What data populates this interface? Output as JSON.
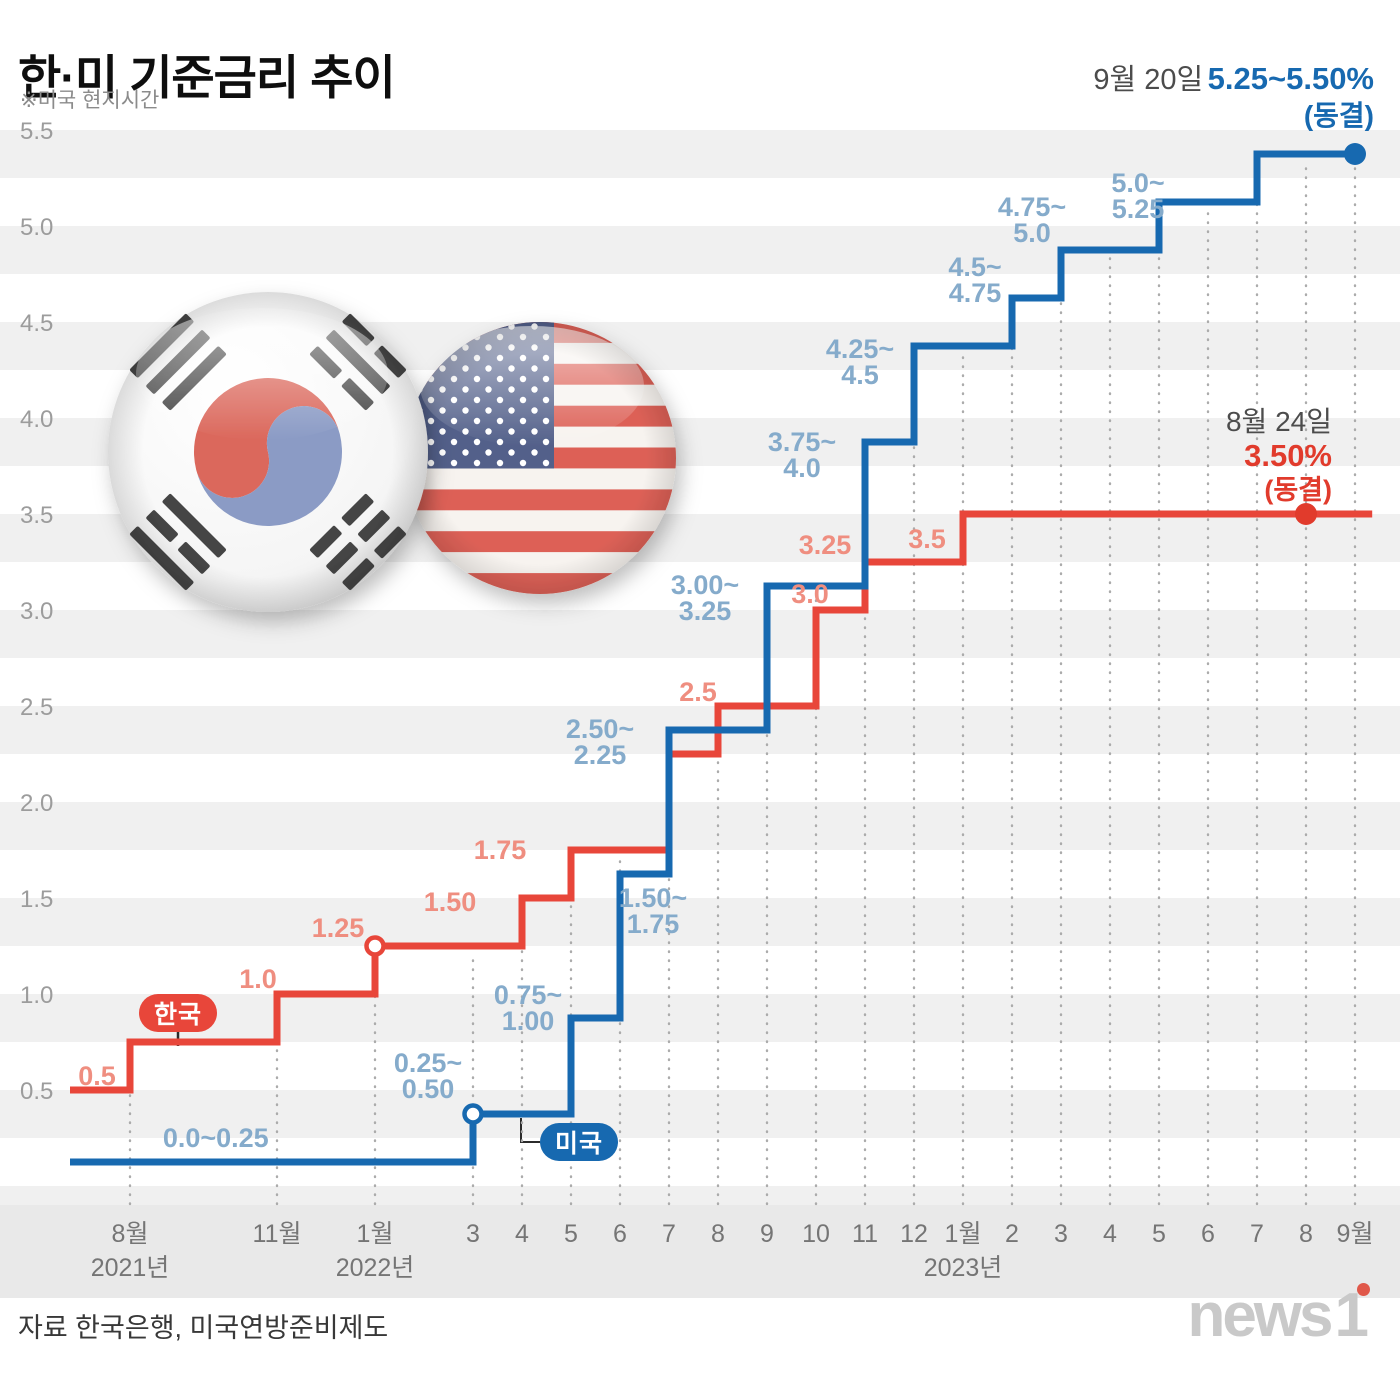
{
  "page": {
    "title": "한·미 기준금리 추이",
    "subtitle": "※미국 현지시간",
    "source": "자료 한국은행, 미국연방준비제도",
    "logo": {
      "news": "news",
      "one": "1"
    }
  },
  "annotations": {
    "us_latest": {
      "date": "9월 20일",
      "value": "5.25~5.50%",
      "status": "(동결)"
    },
    "kr_latest": {
      "date": "8월 24일",
      "value": "3.50%",
      "status": "(동결)"
    }
  },
  "legend": {
    "korea": "한국",
    "us": "미국"
  },
  "colors": {
    "korea_line": "#e8463a",
    "us_line": "#1769b0",
    "korea_label": "#ef8e80",
    "us_label": "#85abcb"
  },
  "chart_data": {
    "type": "step-line",
    "title": "한·미 기준금리 추이",
    "t_unit": "months (t=1 → 2021년 8월)",
    "y_axis": {
      "unit": "%",
      "range": [
        0,
        5.5
      ],
      "ticks": [
        {
          "v": 5.5,
          "label": "5.5"
        },
        {
          "v": 5.0,
          "label": "5.0"
        },
        {
          "v": 4.5,
          "label": "4.5"
        },
        {
          "v": 4.0,
          "label": "4.0"
        },
        {
          "v": 3.5,
          "label": "3.5"
        },
        {
          "v": 3.0,
          "label": "3.0"
        },
        {
          "v": 2.5,
          "label": "2.5"
        },
        {
          "v": 2.0,
          "label": "2.0"
        },
        {
          "v": 1.5,
          "label": "1.5"
        },
        {
          "v": 1.0,
          "label": "1.0"
        },
        {
          "v": 0.5,
          "label": "0.5"
        }
      ]
    },
    "x_axis": {
      "ticks": [
        {
          "t": 1,
          "label": "8월",
          "year": "2021년"
        },
        {
          "t": 4,
          "label": "11월"
        },
        {
          "t": 6,
          "label": "1월",
          "year": "2022년"
        },
        {
          "t": 8,
          "label": "3"
        },
        {
          "t": 9,
          "label": "4"
        },
        {
          "t": 10,
          "label": "5"
        },
        {
          "t": 11,
          "label": "6"
        },
        {
          "t": 12,
          "label": "7"
        },
        {
          "t": 13,
          "label": "8"
        },
        {
          "t": 14,
          "label": "9"
        },
        {
          "t": 15,
          "label": "10"
        },
        {
          "t": 16,
          "label": "11"
        },
        {
          "t": 17,
          "label": "12"
        },
        {
          "t": 18,
          "label": "1월",
          "year": "2023년"
        },
        {
          "t": 19,
          "label": "2"
        },
        {
          "t": 20,
          "label": "3"
        },
        {
          "t": 21,
          "label": "4"
        },
        {
          "t": 22,
          "label": "5"
        },
        {
          "t": 23,
          "label": "6"
        },
        {
          "t": 24,
          "label": "7"
        },
        {
          "t": 25,
          "label": "8"
        },
        {
          "t": 26,
          "label": "9월"
        }
      ]
    },
    "series": [
      {
        "id": "korea",
        "name": "한국",
        "color": "#e8463a",
        "label_color": "#ef8e80",
        "dot_color": "#e13b2c",
        "start_value": 0.5,
        "end_t": 26.35,
        "steps": [
          {
            "t": 1,
            "v": 0.75
          },
          {
            "t": 4,
            "v": 1.0
          },
          {
            "t": 6,
            "v": 1.25
          },
          {
            "t": 9,
            "v": 1.5
          },
          {
            "t": 10,
            "v": 1.75
          },
          {
            "t": 12,
            "v": 2.25
          },
          {
            "t": 13,
            "v": 2.5
          },
          {
            "t": 15,
            "v": 3.0
          },
          {
            "t": 16,
            "v": 3.25
          },
          {
            "t": 18,
            "v": 3.5
          }
        ]
      },
      {
        "id": "us",
        "name": "미국",
        "color": "#1769b0",
        "label_color": "#85abcb",
        "dot_color": "#1769b0",
        "start_value": 0.125,
        "start_range": "0.0~0.25",
        "end_t": 26,
        "steps": [
          {
            "t": 8,
            "v": 0.375,
            "range": "0.25~0.50"
          },
          {
            "t": 10,
            "v": 0.875,
            "range": "0.75~1.00"
          },
          {
            "t": 11,
            "v": 1.625,
            "range": "1.50~1.75"
          },
          {
            "t": 12,
            "v": 2.375,
            "range": "2.25~2.50"
          },
          {
            "t": 14,
            "v": 3.125,
            "range": "3.00~3.25"
          },
          {
            "t": 16,
            "v": 3.875,
            "range": "3.75~4.00"
          },
          {
            "t": 17,
            "v": 4.375,
            "range": "4.25~4.50"
          },
          {
            "t": 19,
            "v": 4.625,
            "range": "4.50~4.75"
          },
          {
            "t": 20,
            "v": 4.875,
            "range": "4.75~5.00"
          },
          {
            "t": 22,
            "v": 5.125,
            "range": "5.00~5.25"
          },
          {
            "t": 24,
            "v": 5.375,
            "range": "5.25~5.50"
          }
        ]
      }
    ],
    "step_labels": [
      {
        "series": "us",
        "lines": [
          "0.0~0.25"
        ],
        "t": 2.75,
        "v": 0.125,
        "dx": 0,
        "dy": -24
      },
      {
        "series": "us",
        "lines": [
          "0.25~",
          "0.50"
        ],
        "t": 8,
        "v": 0.375,
        "dx": -45,
        "dy": -38
      },
      {
        "series": "us",
        "lines": [
          "0.75~",
          "1.00"
        ],
        "t": 10,
        "v": 0.875,
        "dx": -43,
        "dy": -10
      },
      {
        "series": "us",
        "lines": [
          "1.50~",
          "1.75"
        ],
        "t": 11,
        "v": 1.625,
        "dx": 33,
        "dy": 37
      },
      {
        "series": "us",
        "lines": [
          "2.50~",
          "2.25"
        ],
        "t": 12,
        "v": 2.375,
        "dx": -69,
        "dy": 12
      },
      {
        "series": "us",
        "lines": [
          "3.00~",
          "3.25"
        ],
        "t": 14,
        "v": 3.125,
        "dx": -62,
        "dy": 12
      },
      {
        "series": "us",
        "lines": [
          "3.75~",
          "4.0"
        ],
        "t": 16,
        "v": 3.875,
        "dx": -63,
        "dy": 13
      },
      {
        "series": "us",
        "lines": [
          "4.25~",
          "4.5"
        ],
        "t": 17,
        "v": 4.375,
        "dx": -54,
        "dy": 16
      },
      {
        "series": "us",
        "lines": [
          "4.5~",
          "4.75"
        ],
        "t": 19,
        "v": 4.625,
        "dx": -37,
        "dy": -18
      },
      {
        "series": "us",
        "lines": [
          "4.75~",
          "5.0"
        ],
        "t": 20,
        "v": 4.875,
        "dx": -29,
        "dy": -30
      },
      {
        "series": "us",
        "lines": [
          "5.0~",
          "5.25"
        ],
        "t": 22,
        "v": 5.125,
        "dx": -21,
        "dy": -6
      },
      {
        "series": "korea",
        "lines": [
          "0.5"
        ],
        "t": 0,
        "v": 0.5,
        "dx": 16,
        "dy": -14
      },
      {
        "series": "korea",
        "lines": [
          "1.0"
        ],
        "t": 4,
        "v": 1.0,
        "dx": -19,
        "dy": -15
      },
      {
        "series": "korea",
        "lines": [
          "1.25"
        ],
        "t": 6,
        "v": 1.25,
        "dx": -37,
        "dy": -18
      },
      {
        "series": "korea",
        "lines": [
          "1.50"
        ],
        "t": 9,
        "v": 1.5,
        "dx": -72,
        "dy": 4
      },
      {
        "series": "korea",
        "lines": [
          "1.75"
        ],
        "t": 10,
        "v": 1.75,
        "dx": -71,
        "dy": 0
      },
      {
        "series": "korea",
        "lines": [
          "2.5"
        ],
        "t": 13,
        "v": 2.5,
        "dx": -20,
        "dy": -14
      },
      {
        "series": "korea",
        "lines": [
          "3.0"
        ],
        "t": 15,
        "v": 3.0,
        "dx": -6,
        "dy": -16
      },
      {
        "series": "korea",
        "lines": [
          "3.25"
        ],
        "t": 16,
        "v": 3.25,
        "dx": -40,
        "dy": -17
      },
      {
        "series": "korea",
        "lines": [
          "3.5"
        ],
        "t": 18,
        "v": 3.5,
        "dx": -36,
        "dy": 25
      }
    ],
    "markers": [
      {
        "series": "korea",
        "t": 6,
        "v": 1.25,
        "style": "open"
      },
      {
        "series": "us",
        "t": 8,
        "v": 0.375,
        "style": "open"
      },
      {
        "series": "korea",
        "t": 25,
        "v": 3.5,
        "style": "dot"
      },
      {
        "series": "us",
        "t": 26,
        "v": 5.375,
        "style": "dot"
      }
    ]
  }
}
